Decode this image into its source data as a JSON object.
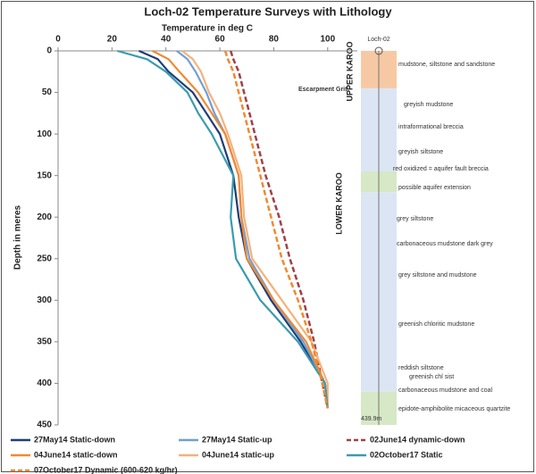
{
  "chart_data": {
    "type": "line",
    "title": "Loch-02 Temperature Surveys with Lithology",
    "x_label": "Temperature in deg C",
    "y_label": "Depth in meres",
    "xlim": [
      0,
      111
    ],
    "xticks": [
      0,
      20,
      40,
      60,
      80,
      100
    ],
    "ylim": [
      0,
      450
    ],
    "yticks": [
      0,
      50,
      100,
      150,
      200,
      250,
      300,
      350,
      400,
      450
    ],
    "y": [
      0,
      10,
      25,
      50,
      75,
      100,
      150,
      200,
      250,
      300,
      350,
      400,
      430
    ],
    "series": [
      {
        "name": "27May14 Static-down",
        "color": "#1f3d7a",
        "dashed": false,
        "values": [
          30,
          37,
          41,
          50,
          55,
          60,
          65,
          67,
          70,
          79,
          90,
          99,
          100
        ]
      },
      {
        "name": "27May14 Static-up",
        "color": "#6f9fd8",
        "dashed": false,
        "values": [
          44,
          48,
          51,
          55,
          58,
          62,
          67,
          68,
          71,
          80,
          91,
          99,
          100
        ]
      },
      {
        "name": "02June14 dynamic-down",
        "color": "#a0404a",
        "dashed": true,
        "values": [
          64,
          65,
          67,
          69,
          71,
          73,
          77,
          82,
          86,
          91,
          95,
          98,
          100
        ]
      },
      {
        "name": "04June14 static-down",
        "color": "#f08a30",
        "dashed": false,
        "values": [
          35,
          41,
          45,
          52,
          57,
          62,
          67,
          68,
          70,
          80,
          92,
          99,
          100
        ]
      },
      {
        "name": "04June14 static-up",
        "color": "#f5b27a",
        "dashed": false,
        "values": [
          46,
          50,
          53,
          56,
          60,
          63,
          68,
          69,
          72,
          83,
          94,
          100,
          100
        ]
      },
      {
        "name": "02October17 Static",
        "color": "#3a9bb0",
        "dashed": false,
        "values": [
          22,
          33,
          40,
          48,
          52,
          57,
          65,
          64,
          66,
          75,
          89,
          99,
          100
        ]
      },
      {
        "name": "07October17 Dynamic (600-620 kg/hr)",
        "color": "#f08a30",
        "dashed": true,
        "values": [
          62,
          63,
          65,
          67,
          69,
          71,
          75,
          79,
          83,
          89,
          94,
          98,
          100
        ]
      }
    ],
    "lithology": {
      "well": "Loch-02",
      "groups": [
        "UPPER KAROO",
        "LOWER KAROO"
      ],
      "bands": [
        {
          "top": 0,
          "bottom": 45,
          "color": "#f6c9a4"
        },
        {
          "top": 45,
          "bottom": 145,
          "color": "#dbe5f4"
        },
        {
          "top": 145,
          "bottom": 170,
          "color": "#d6e8c6"
        },
        {
          "top": 170,
          "bottom": 410,
          "color": "#dbe5f4"
        },
        {
          "top": 410,
          "bottom": 450,
          "color": "#d6e8c6"
        }
      ],
      "labels": [
        "mudstone, siltstone and sandstone",
        "Escarpment Grit",
        "greyish mudstone",
        "intraformational breccia",
        "greyish siltstone",
        "red oxidized = aquifer fault breccia",
        "possible aquifer extension",
        "grey siltstone",
        "carbonaceous mudstone dark grey",
        "grey siltstone and mudstone",
        "greenish chloritic mudstone",
        "reddish siltstone",
        "greenish chl sist",
        "carbonaceous mudstone and coal",
        "epidote-amphibolite micaceous quartzite",
        "439.9m"
      ]
    }
  }
}
